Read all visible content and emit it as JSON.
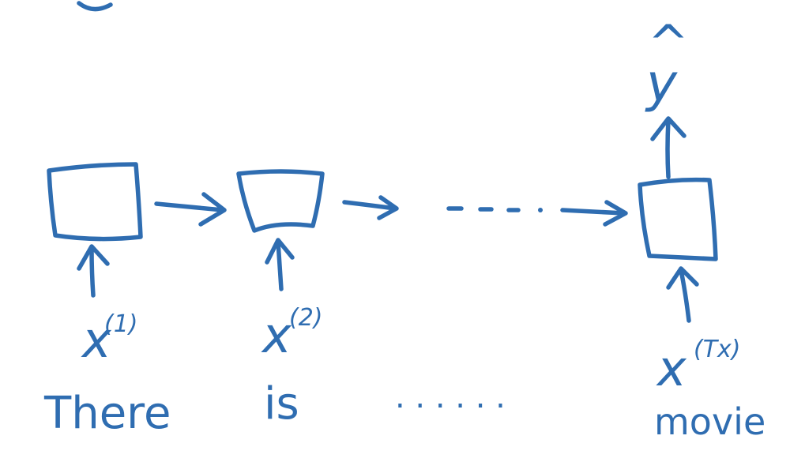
{
  "colors": {
    "ink": "#2f6db1",
    "background": "#ffffff"
  },
  "inputs": [
    {
      "symbol": "x",
      "superscript": "(1)",
      "word": "There"
    },
    {
      "symbol": "x",
      "superscript": "(2)",
      "word": "is"
    },
    {
      "symbol": "x",
      "superscript": "(Tx)",
      "word": "movie"
    }
  ],
  "output": {
    "symbol": "y",
    "hat": "^"
  },
  "ellipsis_flow": "- - - .",
  "ellipsis_words": ". . . . . ."
}
